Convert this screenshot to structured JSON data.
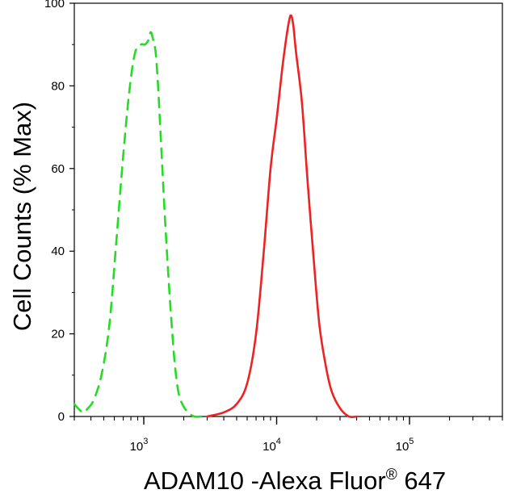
{
  "chart_data": {
    "type": "line",
    "xlabel": "ADAM10 -Alexa Fluor",
    "xlabel_sup": "®",
    "xlabel_tail": " 647",
    "ylabel": "Cell Counts (% Max)",
    "x_scale": "log",
    "xlim": [
      300,
      500000
    ],
    "ylim": [
      0,
      100
    ],
    "y_ticks": [
      "0",
      "20",
      "40",
      "60",
      "80",
      "100"
    ],
    "x_ticks": [
      {
        "base": "10",
        "exp": "3",
        "value": 1000
      },
      {
        "base": "10",
        "exp": "4",
        "value": 10000
      },
      {
        "base": "10",
        "exp": "5",
        "value": 100000
      }
    ],
    "series": [
      {
        "color": "#22dd22",
        "dashed": true,
        "x": [
          300,
          320,
          350,
          380,
          420,
          480,
          550,
          620,
          700,
          780,
          860,
          950,
          1020,
          1080,
          1130,
          1180,
          1230,
          1280,
          1330,
          1400,
          1480,
          1560,
          1640,
          1720,
          1820,
          1950,
          2150,
          2400,
          2700,
          3000
        ],
        "y": [
          3,
          2,
          1,
          2,
          4,
          10,
          22,
          42,
          63,
          79,
          88,
          90,
          90,
          91,
          93,
          91,
          88,
          80,
          70,
          56,
          42,
          30,
          20,
          12,
          6,
          3,
          1,
          0,
          0,
          0
        ]
      },
      {
        "color": "#ee2222",
        "dashed": false,
        "x": [
          3000,
          4000,
          5000,
          6000,
          7000,
          8000,
          9000,
          10000,
          11000,
          12000,
          12700,
          13300,
          14000,
          15500,
          17000,
          19000,
          21000,
          23500,
          26000,
          30000,
          35000,
          40000
        ],
        "y": [
          0,
          1,
          3,
          8,
          20,
          40,
          60,
          72,
          84,
          93,
          97,
          95,
          88,
          76,
          58,
          38,
          22,
          12,
          6,
          2,
          0,
          0
        ]
      }
    ]
  }
}
